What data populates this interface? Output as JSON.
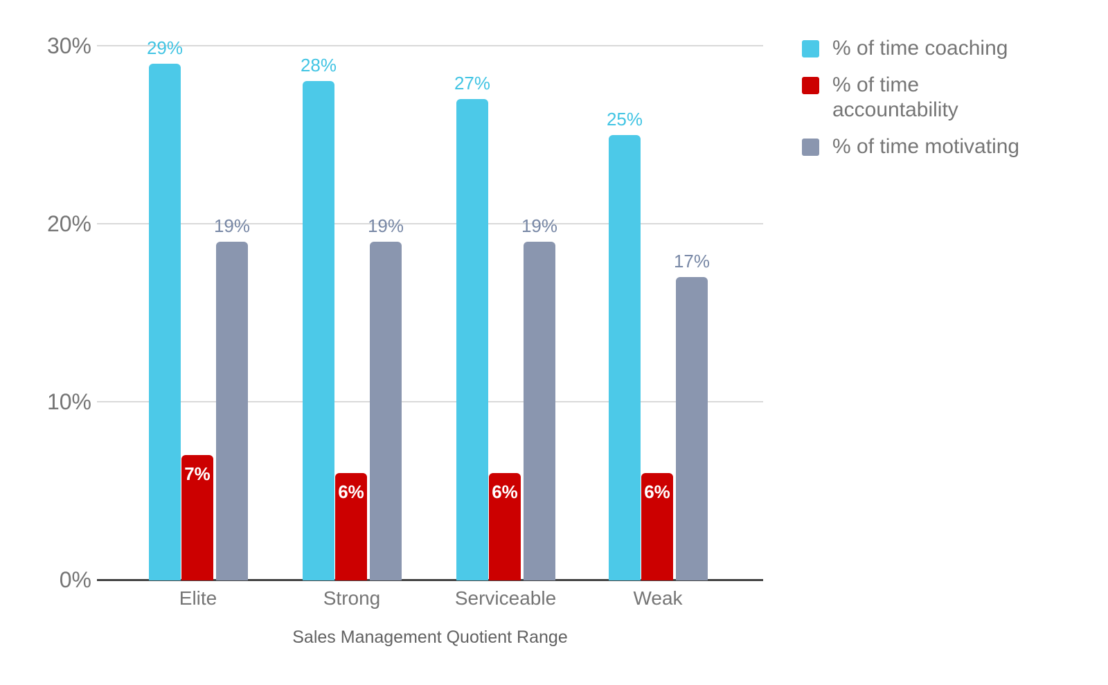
{
  "chart_data": {
    "type": "bar",
    "title": "",
    "xlabel": "Sales Management Quotient Range",
    "ylabel": "",
    "categories": [
      "Elite",
      "Strong",
      "Serviceable",
      "Weak"
    ],
    "series": [
      {
        "name": "% of time coaching",
        "values": [
          29,
          28,
          27,
          25
        ],
        "labels": [
          "29%",
          "28%",
          "27%",
          "25%"
        ],
        "color": "#4CC9E8",
        "label_color": "#41C4E3",
        "label_position": "above"
      },
      {
        "name": "% of time accountability",
        "values": [
          7,
          6,
          6,
          6
        ],
        "labels": [
          "7%",
          "6%",
          "6%",
          "6%"
        ],
        "color": "#CC0000",
        "label_color": "#FFFFFF",
        "label_position": "inside"
      },
      {
        "name": "% of time motivating",
        "values": [
          19,
          19,
          19,
          17
        ],
        "labels": [
          "19%",
          "19%",
          "19%",
          "17%"
        ],
        "color": "#8A96AF",
        "label_color": "#7787A5",
        "label_position": "above"
      }
    ],
    "y_axis": {
      "max": 30,
      "ticks": [
        {
          "label": "0%",
          "value": 0
        },
        {
          "label": "10%",
          "value": 10
        },
        {
          "label": "20%",
          "value": 20
        },
        {
          "label": "30%",
          "value": 30
        }
      ]
    },
    "grid": true,
    "legend_position": "right"
  },
  "colors": {
    "background": "#FFFFFF",
    "gridline": "#D9D9D9",
    "axis_line": "#424242",
    "axis_text": "#757575",
    "category_text": "#757575",
    "axis_title_text": "#616161",
    "legend_text": "#757575"
  }
}
